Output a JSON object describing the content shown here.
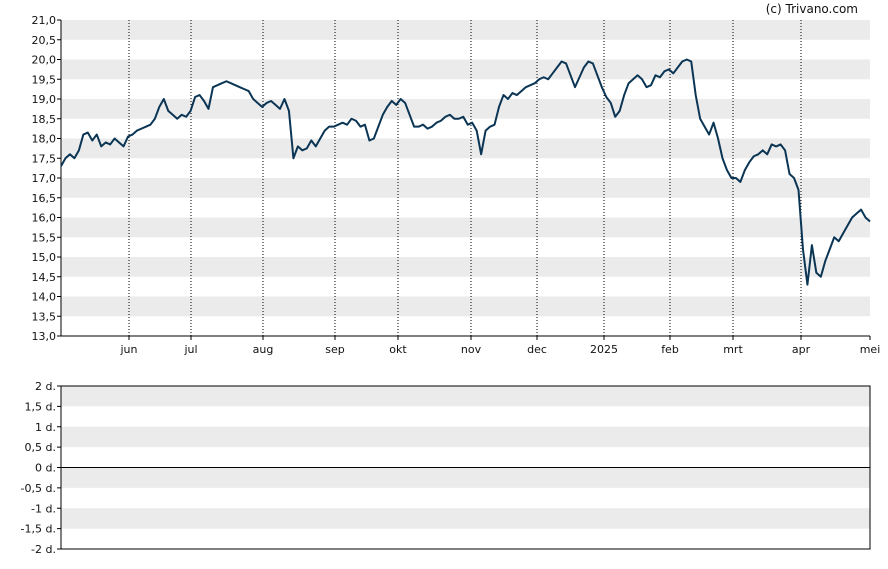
{
  "credit": "(c) Trivano.com",
  "colors": {
    "line": "#0b3554",
    "band": "#ebebeb",
    "axis": "#000000",
    "grid_dotted": "#000000"
  },
  "chart_data": [
    {
      "type": "line",
      "ylim": [
        13.0,
        21.0
      ],
      "yticks": [
        "13,0",
        "13,5",
        "14,0",
        "14,5",
        "15,0",
        "15,5",
        "16,0",
        "16,5",
        "17,0",
        "17,5",
        "18,0",
        "18,5",
        "19,0",
        "19,5",
        "20,0",
        "20,5",
        "21,0"
      ],
      "xtick_labels": [
        "jun",
        "jul",
        "aug",
        "sep",
        "okt",
        "nov",
        "dec",
        "2025",
        "feb",
        "mrt",
        "apr",
        "mei"
      ],
      "grid": "alternating horizontal bands, dotted vertical lines at month ticks",
      "series": [
        {
          "values": [
            17.3,
            17.5,
            17.6,
            17.5,
            17.7,
            18.1,
            18.15,
            17.95,
            18.1,
            17.8,
            17.9,
            17.85,
            18.0,
            17.9,
            17.8,
            18.05,
            18.1,
            18.2,
            18.25,
            18.3,
            18.35,
            18.5,
            18.8,
            19.0,
            18.7,
            18.6,
            18.5,
            18.6,
            18.55,
            18.7,
            19.05,
            19.1,
            18.95,
            18.75,
            19.3,
            19.35,
            19.4,
            19.45,
            19.4,
            19.35,
            19.3,
            19.25,
            19.2,
            19.0,
            18.9,
            18.8,
            18.9,
            18.95,
            18.85,
            18.75,
            19.0,
            18.7,
            17.5,
            17.8,
            17.7,
            17.75,
            17.95,
            17.8,
            18.0,
            18.2,
            18.3,
            18.3,
            18.35,
            18.4,
            18.35,
            18.5,
            18.45,
            18.3,
            18.35,
            17.95,
            18.0,
            18.3,
            18.6,
            18.8,
            18.95,
            18.85,
            19.0,
            18.9,
            18.6,
            18.3,
            18.3,
            18.35,
            18.25,
            18.3,
            18.4,
            18.45,
            18.55,
            18.6,
            18.5,
            18.5,
            18.55,
            18.35,
            18.4,
            18.2,
            17.6,
            18.2,
            18.3,
            18.35,
            18.8,
            19.1,
            19.0,
            19.15,
            19.1,
            19.2,
            19.3,
            19.35,
            19.4,
            19.5,
            19.55,
            19.5,
            19.65,
            19.8,
            19.95,
            19.9,
            19.6,
            19.3,
            19.55,
            19.8,
            19.95,
            19.9,
            19.6,
            19.3,
            19.05,
            18.9,
            18.55,
            18.7,
            19.1,
            19.4,
            19.5,
            19.6,
            19.5,
            19.3,
            19.35,
            19.6,
            19.55,
            19.7,
            19.75,
            19.65,
            19.8,
            19.95,
            20.0,
            19.95,
            19.1,
            18.5,
            18.3,
            18.1,
            18.4,
            18.0,
            17.5,
            17.2,
            17.0,
            17.0,
            16.9,
            17.2,
            17.4,
            17.55,
            17.6,
            17.7,
            17.6,
            17.85,
            17.8,
            17.85,
            17.7,
            17.1,
            17.0,
            16.7,
            15.2,
            14.3,
            15.3,
            14.6,
            14.5,
            14.9,
            15.2,
            15.5,
            15.4,
            15.6,
            15.8,
            16.0,
            16.1,
            16.2,
            16.0,
            15.9
          ]
        }
      ]
    },
    {
      "type": "bar",
      "ylim": [
        -2,
        2
      ],
      "yticks": [
        "-2 d.",
        "-1,5 d.",
        "-1 d.",
        "-0,5 d.",
        "0 d.",
        "0,5 d.",
        "1 d.",
        "1,5 d.",
        "2 d."
      ],
      "series": []
    }
  ]
}
